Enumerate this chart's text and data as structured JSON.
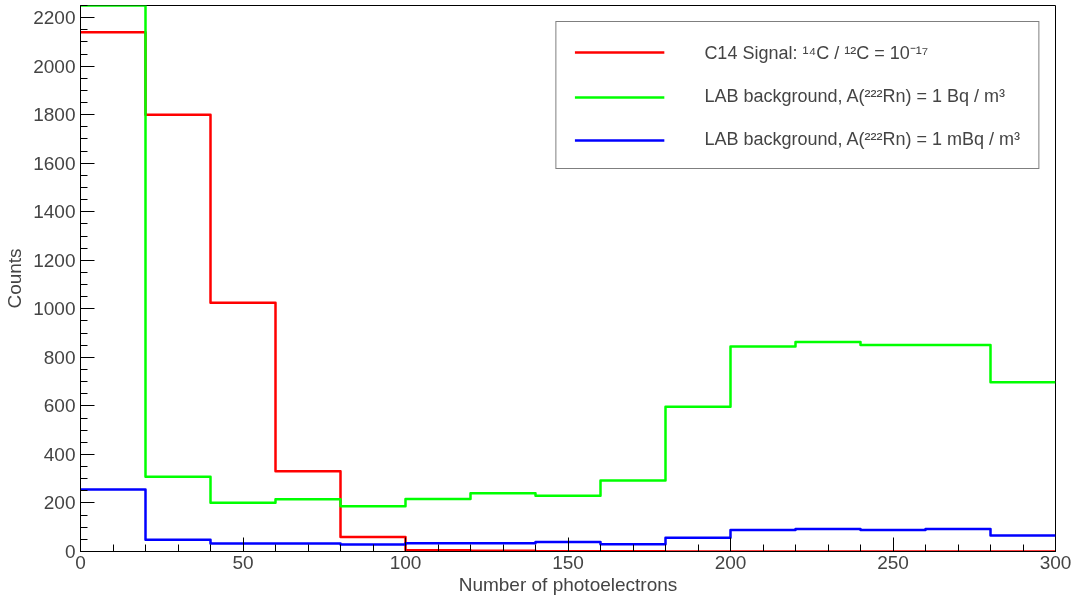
{
  "chart_data": {
    "type": "histogram",
    "xlabel": "Number of photoelectrons",
    "ylabel": "Counts",
    "bins": [
      0,
      20,
      40,
      60,
      80,
      100,
      120,
      140,
      160,
      180,
      200,
      220,
      240,
      260,
      280,
      300
    ],
    "series": [
      {
        "name": "C14 Signal: ¹⁴C / ¹²C = 10⁻¹⁷",
        "color": "#ff0000",
        "values": [
          2140,
          1800,
          1025,
          331,
          60,
          5,
          3,
          1,
          1,
          0,
          0,
          0,
          0,
          0,
          0
        ]
      },
      {
        "name": "LAB background, A(²²²Rn) = 1 Bq / m³",
        "color": "#00ff00",
        "values": [
          2250,
          308,
          201,
          215,
          186,
          216,
          240,
          230,
          293,
          597,
          845,
          863,
          851,
          851,
          697
        ]
      },
      {
        "name": "LAB background, A(²²²Rn) = 1 mBq / m³",
        "color": "#0000ff",
        "values": [
          255,
          48,
          33,
          33,
          29,
          34,
          34,
          39,
          30,
          57,
          89,
          93,
          89,
          93,
          66
        ]
      }
    ],
    "xlim": [
      0,
      300
    ],
    "xticks": [
      0,
      50,
      100,
      150,
      200,
      250,
      300
    ],
    "ylim": [
      0,
      2250
    ],
    "yticks": [
      0,
      200,
      400,
      600,
      800,
      1000,
      1200,
      1400,
      1600,
      1800,
      2000,
      2200
    ],
    "grid": false,
    "legend": "top right"
  }
}
